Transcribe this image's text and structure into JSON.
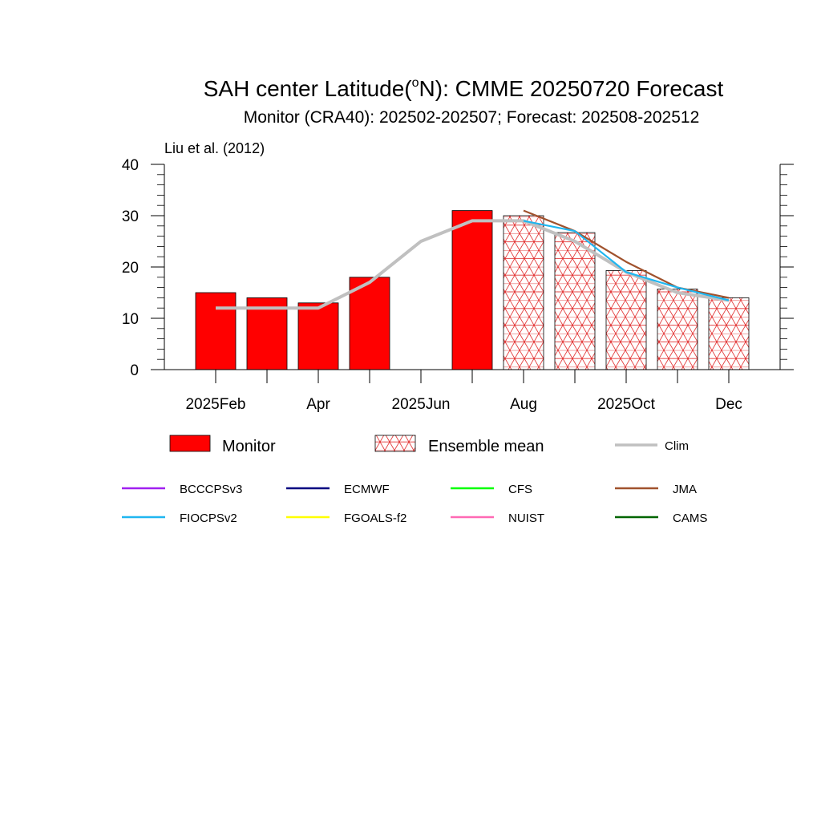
{
  "chart_data": {
    "type": "bar",
    "title": "SAH center Latitude(",
    "title_sup": "o",
    "title_rest": "N): CMME 20250720 Forecast",
    "subtitle": "Monitor (CRA40): 202502-202507; Forecast: 202508-202512",
    "annotation": "Liu et al. (2012)",
    "ylim": [
      0,
      40
    ],
    "y_ticks": [
      "0",
      "10",
      "20",
      "30",
      "40"
    ],
    "x_tick_labels": [
      "2025Feb",
      "Apr",
      "2025Jun",
      "Aug",
      "2025Oct",
      "Dec"
    ],
    "months": [
      "2025-02",
      "2025-03",
      "2025-04",
      "2025-05",
      "2025-06",
      "2025-07",
      "2025-08",
      "2025-09",
      "2025-10",
      "2025-11",
      "2025-12"
    ],
    "grid": false,
    "monitor": {
      "name": "Monitor",
      "color": "#ff0000",
      "months": [
        "2025-02",
        "2025-03",
        "2025-04",
        "2025-05",
        "2025-07"
      ],
      "values": [
        15,
        14,
        13,
        18,
        31
      ]
    },
    "ensemble_mean": {
      "name": "Ensemble mean",
      "color": "#ff0000",
      "pattern": "triangular-hatch",
      "months": [
        "2025-08",
        "2025-09",
        "2025-10",
        "2025-11",
        "2025-12"
      ],
      "values": [
        30,
        26.7,
        19.3,
        15.7,
        14
      ]
    },
    "clim": {
      "name": "Clim",
      "color": "#c0c0c0",
      "months": [
        "2025-02",
        "2025-03",
        "2025-04",
        "2025-05",
        "2025-06",
        "2025-07",
        "2025-08",
        "2025-09",
        "2025-10",
        "2025-11",
        "2025-12"
      ],
      "values": [
        12,
        12,
        12,
        17,
        25,
        29,
        29,
        25,
        19,
        15,
        13.5
      ]
    },
    "series": [
      {
        "name": "BCCCPSv3",
        "color": "#a020f0",
        "months": [],
        "values": []
      },
      {
        "name": "ECMWF",
        "color": "#000080",
        "months": [],
        "values": []
      },
      {
        "name": "CFS",
        "color": "#00ff00",
        "months": [],
        "values": []
      },
      {
        "name": "JMA",
        "color": "#a0522d",
        "months": [
          "2025-08",
          "2025-09",
          "2025-10",
          "2025-11",
          "2025-12"
        ],
        "values": [
          31,
          27,
          21,
          16,
          14
        ]
      },
      {
        "name": "FIOCPSv2",
        "color": "#1fb6f0",
        "months": [
          "2025-08",
          "2025-09",
          "2025-10",
          "2025-11",
          "2025-12"
        ],
        "values": [
          29,
          27,
          19,
          16,
          13.5
        ]
      },
      {
        "name": "FGOALS-f2",
        "color": "#ffff00",
        "months": [],
        "values": []
      },
      {
        "name": "NUIST",
        "color": "#ff69b4",
        "months": [],
        "values": []
      },
      {
        "name": "CAMS",
        "color": "#006400",
        "months": [],
        "values": []
      }
    ],
    "legend_placement": "bottom"
  }
}
